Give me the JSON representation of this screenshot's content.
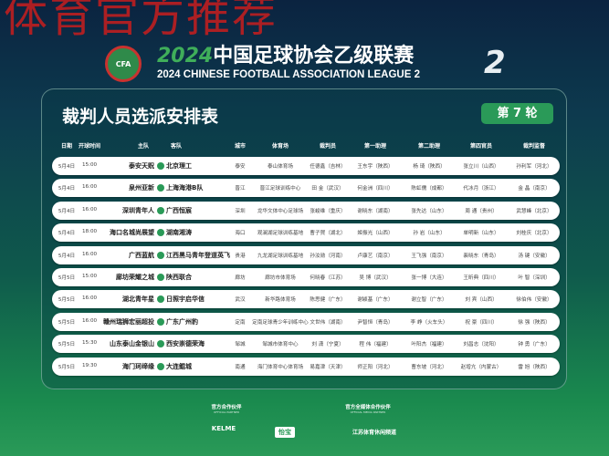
{
  "watermark": "体育官方推荐",
  "header": {
    "logo_text": "CFA",
    "year": "2024",
    "title_cn": "中国足球协会乙级联赛",
    "title_en": "2024 CHINESE FOOTBALL ASSOCIATION LEAGUE 2"
  },
  "card": {
    "title": "裁判人员选派安排表",
    "round": "第 7 轮"
  },
  "columns": [
    "日期",
    "开球时间",
    "主队",
    "客队",
    "城市",
    "体育场",
    "裁判员",
    "第一助理",
    "第二助理",
    "第四官员",
    "裁判监督"
  ],
  "rows": [
    [
      "5月4日",
      "15:00",
      "泰安天贶",
      "北京理工",
      "泰安",
      "泰山体育场",
      "任德鑫（吉林）",
      "王东宇（陕西）",
      "杨 琦（陕西）",
      "张立川（山西）",
      "孙利军（河北）"
    ],
    [
      "5月4日",
      "16:00",
      "泉州亚新",
      "上海海港B队",
      "晋江",
      "晋江足球训练中心",
      "田 金（武汉）",
      "何金洲（四川）",
      "陈虹儒（成都）",
      "代冰月（浙江）",
      "金 晶（南京）"
    ],
    [
      "5月4日",
      "16:00",
      "深圳青年人",
      "广西恒宸",
      "深圳",
      "龙华文体中心足球场",
      "张峻维（重庆）",
      "谢晓东（湖南）",
      "张先达（山东）",
      "周 通（贵州）",
      "武慧峰（北京）"
    ],
    [
      "5月4日",
      "18:00",
      "海口名城尚展望",
      "湖南湘涛",
      "海口",
      "观澜湖足球训练基地",
      "曹子賀（湖北）",
      "姬振光（山西）",
      "孙 岩（山东）",
      "单明新（山东）",
      "刘桂庆（北京）"
    ],
    [
      "5月4日",
      "16:00",
      "广西蓝航",
      "江西黑马青年登道英飞",
      "贵港",
      "九龙湖足球训练基地",
      "孙汝勋（河南）",
      "卢康艺（南京）",
      "王飞强（南京）",
      "裴晓东（青岛）",
      "汤 键（安徽）"
    ],
    [
      "5月5日",
      "15:00",
      "廊坊荣耀之城",
      "陕西联合",
      "廊坊",
      "廊坊市体育场",
      "何晓春（江苏）",
      "吴 博（武汉）",
      "张一博（大连）",
      "王昕典（四川）",
      "叶 智（深圳）"
    ],
    [
      "5月5日",
      "16:00",
      "湖北青年星",
      "日照宇启华信",
      "武汉",
      "新华路体育场",
      "陈思健（广东）",
      "谢颖基（广东）",
      "谢立智（广东）",
      "刘 宾（山西）",
      "徐伯伟（安徽）"
    ],
    [
      "5月5日",
      "16:00",
      "赣州瑞狮宏丽超投",
      "广东广州豹",
      "定南",
      "定南足球青少年训练中心",
      "文世伟（湖南）",
      "尹智恒（青岛）",
      "李 峥（火车头）",
      "祝 豪（四川）",
      "徐 强（陕西）"
    ],
    [
      "5月5日",
      "15:30",
      "山东泰山金银山",
      "西安崇德荣海",
      "邹城",
      "邹城市体育中心",
      "刘 潇（宁夏）",
      "程 伟（福建）",
      "叶阳杰（福建）",
      "刘昌志（沈阳）",
      "钟 勇（广东）"
    ],
    [
      "5月5日",
      "19:30",
      "海门珂缔缘",
      "大连鲲城",
      "南通",
      "海门体育中心体育场",
      "易嘉津（天津）",
      "师正阳（河北）",
      "曹东坡（河北）",
      "赵增亢（内蒙古）",
      "雷 旭（陕西）"
    ]
  ],
  "footer": {
    "partner_cn": "官方合作伙伴",
    "partner_en": "OFFICIAL PARTNER",
    "media_cn": "官方全媒体合作伙伴",
    "media_en": "OFFICIAL MEDIA PARTNER",
    "sponsors": [
      "KELME",
      "怡宝",
      "江苏体育休闲频道"
    ]
  },
  "colors": {
    "accent": "#2a9a58",
    "watermark": "#c81e1e"
  }
}
